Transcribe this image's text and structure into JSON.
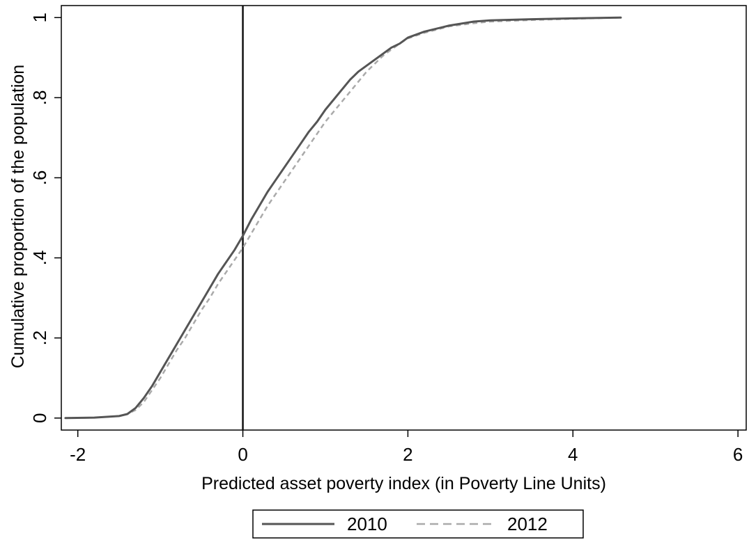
{
  "chart_data": {
    "type": "line",
    "title": "",
    "xlabel": "Predicted asset poverty index (in Poverty Line Units)",
    "ylabel": "Cumulative proportion of the population",
    "xlim": [
      -2.2,
      6.1
    ],
    "ylim": [
      -0.03,
      1.03
    ],
    "x_ticks": [
      {
        "value": -2,
        "label": "-2"
      },
      {
        "value": 0,
        "label": "0"
      },
      {
        "value": 2,
        "label": "2"
      },
      {
        "value": 4,
        "label": "4"
      },
      {
        "value": 6,
        "label": "6"
      }
    ],
    "y_ticks": [
      {
        "value": 0,
        "label": "0"
      },
      {
        "value": 0.2,
        "label": ".2"
      },
      {
        "value": 0.4,
        "label": ".4"
      },
      {
        "value": 0.6,
        "label": ".6"
      },
      {
        "value": 0.8,
        "label": ".8"
      },
      {
        "value": 1,
        "label": "1"
      }
    ],
    "reference_line_x": 0,
    "grid": false,
    "legend_position": "bottom-center",
    "series": [
      {
        "name": "2010",
        "style": "solid",
        "color": "#555555",
        "x": [
          -2.15,
          -1.8,
          -1.5,
          -1.4,
          -1.3,
          -1.2,
          -1.1,
          -1.0,
          -0.9,
          -0.8,
          -0.7,
          -0.6,
          -0.5,
          -0.4,
          -0.3,
          -0.2,
          -0.1,
          0.0,
          0.1,
          0.2,
          0.3,
          0.4,
          0.5,
          0.6,
          0.7,
          0.8,
          0.9,
          1.0,
          1.1,
          1.2,
          1.3,
          1.4,
          1.5,
          1.6,
          1.7,
          1.8,
          1.9,
          2.0,
          2.2,
          2.5,
          2.8,
          3.0,
          3.5,
          4.0,
          4.58
        ],
        "values": [
          0.0,
          0.001,
          0.005,
          0.01,
          0.025,
          0.05,
          0.08,
          0.115,
          0.15,
          0.185,
          0.22,
          0.255,
          0.29,
          0.325,
          0.36,
          0.39,
          0.42,
          0.455,
          0.495,
          0.53,
          0.565,
          0.595,
          0.625,
          0.655,
          0.685,
          0.715,
          0.74,
          0.77,
          0.795,
          0.82,
          0.845,
          0.865,
          0.88,
          0.895,
          0.91,
          0.925,
          0.935,
          0.95,
          0.965,
          0.98,
          0.99,
          0.993,
          0.996,
          0.998,
          1.0
        ]
      },
      {
        "name": "2012",
        "style": "dashed",
        "color": "#aaaaaa",
        "x": [
          -2.15,
          -1.8,
          -1.5,
          -1.4,
          -1.3,
          -1.2,
          -1.1,
          -1.0,
          -0.9,
          -0.8,
          -0.7,
          -0.6,
          -0.5,
          -0.4,
          -0.3,
          -0.2,
          -0.1,
          0.0,
          0.1,
          0.2,
          0.3,
          0.4,
          0.5,
          0.6,
          0.7,
          0.8,
          0.9,
          1.0,
          1.1,
          1.2,
          1.3,
          1.4,
          1.5,
          1.6,
          1.7,
          1.8,
          1.9,
          2.0,
          2.2,
          2.5,
          2.8,
          3.0,
          3.5,
          4.0,
          4.58
        ],
        "values": [
          0.0,
          0.001,
          0.005,
          0.01,
          0.02,
          0.04,
          0.07,
          0.1,
          0.135,
          0.17,
          0.2,
          0.235,
          0.27,
          0.3,
          0.335,
          0.365,
          0.395,
          0.425,
          0.46,
          0.495,
          0.53,
          0.56,
          0.59,
          0.62,
          0.65,
          0.68,
          0.71,
          0.74,
          0.765,
          0.79,
          0.815,
          0.84,
          0.865,
          0.885,
          0.905,
          0.92,
          0.935,
          0.948,
          0.962,
          0.978,
          0.986,
          0.99,
          0.994,
          0.997,
          1.0
        ]
      }
    ]
  }
}
